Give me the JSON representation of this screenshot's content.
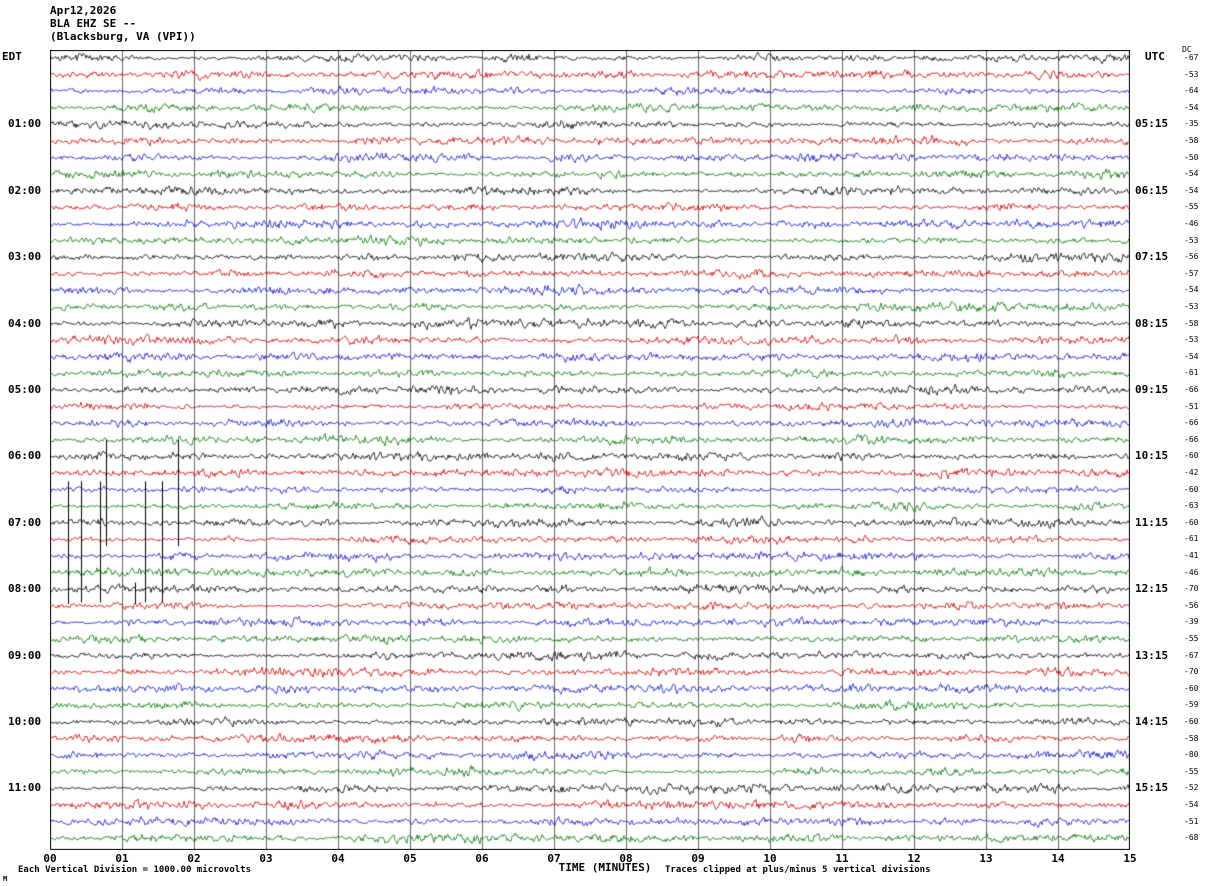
{
  "header": {
    "date": "Apr12,2026",
    "station": "BLA EHZ SE --",
    "location": "(Blacksburg, VA (VPI))"
  },
  "axes": {
    "left_tz": "EDT",
    "right_tz": "UTC",
    "dc_header": "DC",
    "x_ticks": [
      "00",
      "01",
      "02",
      "03",
      "04",
      "05",
      "06",
      "07",
      "08",
      "09",
      "10",
      "11",
      "12",
      "13",
      "14",
      "15"
    ]
  },
  "footer": {
    "left_note": "Each Vertical Division = 1000.00 microvolts",
    "right_note": "Traces clipped at plus/minus 5 vertical divisions",
    "corner_mark": "M"
  },
  "chart_data": {
    "type": "line",
    "subtype": "helicorder-seismogram",
    "title": "BLA EHZ SE -- (Blacksburg, VA (VPI)) Apr12,2026",
    "xlabel": "TIME (MINUTES)",
    "x_range": [
      0,
      15
    ],
    "minutes_per_line": 15,
    "rows_per_hour": 4,
    "division_microvolts": 1000.0,
    "clip_divisions": 5,
    "noise_amplitude_divisions": 0.15,
    "grid": true,
    "trace_color_cycle": [
      "#000000",
      "#d00000",
      "#1414c8",
      "#007700"
    ],
    "rows": [
      {
        "edt": "",
        "utc": "",
        "dc": -67
      },
      {
        "edt": "",
        "utc": "",
        "dc": -53
      },
      {
        "edt": "",
        "utc": "",
        "dc": -64
      },
      {
        "edt": "",
        "utc": "",
        "dc": -54
      },
      {
        "edt": "01:00",
        "utc": "05:15",
        "dc": -35
      },
      {
        "edt": "",
        "utc": "",
        "dc": -58
      },
      {
        "edt": "",
        "utc": "",
        "dc": -50
      },
      {
        "edt": "",
        "utc": "",
        "dc": -54
      },
      {
        "edt": "02:00",
        "utc": "06:15",
        "dc": -54
      },
      {
        "edt": "",
        "utc": "",
        "dc": -55
      },
      {
        "edt": "",
        "utc": "",
        "dc": -46
      },
      {
        "edt": "",
        "utc": "",
        "dc": -53
      },
      {
        "edt": "03:00",
        "utc": "07:15",
        "dc": -56
      },
      {
        "edt": "",
        "utc": "",
        "dc": -57
      },
      {
        "edt": "",
        "utc": "",
        "dc": -54
      },
      {
        "edt": "",
        "utc": "",
        "dc": -53
      },
      {
        "edt": "04:00",
        "utc": "08:15",
        "dc": -58
      },
      {
        "edt": "",
        "utc": "",
        "dc": -53
      },
      {
        "edt": "",
        "utc": "",
        "dc": -54
      },
      {
        "edt": "",
        "utc": "",
        "dc": -61
      },
      {
        "edt": "05:00",
        "utc": "09:15",
        "dc": -66
      },
      {
        "edt": "",
        "utc": "",
        "dc": -51
      },
      {
        "edt": "",
        "utc": "",
        "dc": -66
      },
      {
        "edt": "",
        "utc": "",
        "dc": -66
      },
      {
        "edt": "06:00",
        "utc": "10:15",
        "dc": -60
      },
      {
        "edt": "",
        "utc": "",
        "dc": -42
      },
      {
        "edt": "",
        "utc": "",
        "dc": -60
      },
      {
        "edt": "",
        "utc": "",
        "dc": -63
      },
      {
        "edt": "07:00",
        "utc": "11:15",
        "dc": -60
      },
      {
        "edt": "",
        "utc": "",
        "dc": -61
      },
      {
        "edt": "",
        "utc": "",
        "dc": -41
      },
      {
        "edt": "",
        "utc": "",
        "dc": -46
      },
      {
        "edt": "08:00",
        "utc": "12:15",
        "dc": -70
      },
      {
        "edt": "",
        "utc": "",
        "dc": -56
      },
      {
        "edt": "",
        "utc": "",
        "dc": -39
      },
      {
        "edt": "",
        "utc": "",
        "dc": -55
      },
      {
        "edt": "09:00",
        "utc": "13:15",
        "dc": -67
      },
      {
        "edt": "",
        "utc": "",
        "dc": -70
      },
      {
        "edt": "",
        "utc": "",
        "dc": -60
      },
      {
        "edt": "",
        "utc": "",
        "dc": -59
      },
      {
        "edt": "10:00",
        "utc": "14:15",
        "dc": -60
      },
      {
        "edt": "",
        "utc": "",
        "dc": -58
      },
      {
        "edt": "",
        "utc": "",
        "dc": -80
      },
      {
        "edt": "",
        "utc": "",
        "dc": -55
      },
      {
        "edt": "11:00",
        "utc": "15:15",
        "dc": -52
      },
      {
        "edt": "",
        "utc": "",
        "dc": -54
      },
      {
        "edt": "",
        "utc": "",
        "dc": -51
      },
      {
        "edt": "",
        "utc": "",
        "dc": -68
      }
    ],
    "spikes": [
      {
        "row": 28,
        "minute": 0.25,
        "up": 2.5,
        "down": 4.8
      },
      {
        "row": 28,
        "minute": 0.43,
        "up": 2.5,
        "down": 4.8
      },
      {
        "row": 28,
        "minute": 0.7,
        "up": 2.5,
        "down": 4.8
      },
      {
        "row": 28,
        "minute": 0.78,
        "up": 5.0,
        "down": 1.4
      },
      {
        "row": 28,
        "minute": 1.32,
        "up": 2.5,
        "down": 4.8
      },
      {
        "row": 28,
        "minute": 1.55,
        "up": 2.5,
        "down": 4.8
      },
      {
        "row": 28,
        "minute": 1.78,
        "up": 5.0,
        "down": 1.4
      },
      {
        "row": 32,
        "minute": 0.25,
        "up": 0.4,
        "down": 0.9
      },
      {
        "row": 32,
        "minute": 1.18,
        "up": 0.4,
        "down": 0.9
      }
    ]
  }
}
